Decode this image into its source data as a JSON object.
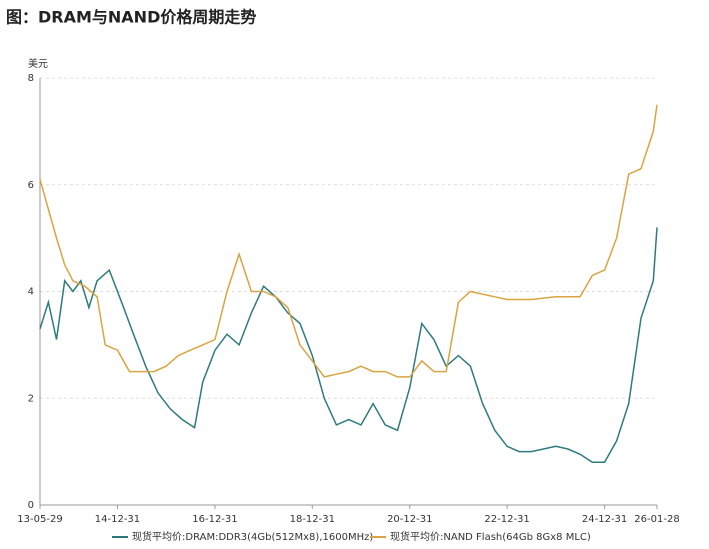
{
  "chart_data": {
    "type": "line",
    "title": "图：DRAM与NAND价格周期走势",
    "y_label": "美元",
    "xlim": [
      "2013-05-29",
      "2026-01-28"
    ],
    "xticks": [
      {
        "value": "2013-05-29",
        "label": "13-05-29"
      },
      {
        "value": "2014-12-31",
        "label": "14-12-31"
      },
      {
        "value": "2016-12-31",
        "label": "16-12-31"
      },
      {
        "value": "2018-12-31",
        "label": "18-12-31"
      },
      {
        "value": "2020-12-31",
        "label": "20-12-31"
      },
      {
        "value": "2022-12-31",
        "label": "22-12-31"
      },
      {
        "value": "2024-12-31",
        "label": "24-12-31"
      },
      {
        "value": "2026-01-28",
        "label": "26-01-28"
      }
    ],
    "ylim": [
      0,
      8
    ],
    "yticks": [
      0,
      2,
      4,
      6,
      8
    ],
    "grid": true,
    "legend": "bottom",
    "series": [
      {
        "name": "现货平均价:DRAM:DDR3(4Gb(512Mx8),1600MHz)",
        "color": "#2e7b7d",
        "x": [
          "2013-05-29",
          "2013-07-31",
          "2013-09-30",
          "2013-11-30",
          "2014-01-31",
          "2014-03-31",
          "2014-05-31",
          "2014-07-31",
          "2014-10-31",
          "2015-01-31",
          "2015-04-30",
          "2015-07-31",
          "2015-10-31",
          "2016-01-31",
          "2016-04-30",
          "2016-07-31",
          "2016-09-30",
          "2016-12-31",
          "2017-03-31",
          "2017-06-30",
          "2017-09-30",
          "2017-12-31",
          "2018-03-31",
          "2018-06-30",
          "2018-09-30",
          "2018-12-31",
          "2019-03-31",
          "2019-06-30",
          "2019-09-30",
          "2019-12-31",
          "2020-03-31",
          "2020-06-30",
          "2020-09-30",
          "2020-12-31",
          "2021-03-31",
          "2021-06-30",
          "2021-09-30",
          "2021-12-31",
          "2022-03-31",
          "2022-06-30",
          "2022-09-30",
          "2022-12-31",
          "2023-03-31",
          "2023-06-30",
          "2023-09-30",
          "2023-12-31",
          "2024-03-31",
          "2024-06-30",
          "2024-09-30",
          "2024-12-31",
          "2025-03-31",
          "2025-06-30",
          "2025-09-30",
          "2025-12-31",
          "2026-01-28"
        ],
        "values": [
          3.3,
          3.8,
          3.1,
          4.2,
          4.0,
          4.2,
          3.7,
          4.2,
          4.4,
          3.8,
          3.2,
          2.6,
          2.1,
          1.8,
          1.6,
          1.45,
          2.3,
          2.9,
          3.2,
          3.0,
          3.6,
          4.1,
          3.9,
          3.6,
          3.4,
          2.8,
          2.0,
          1.5,
          1.6,
          1.5,
          1.9,
          1.5,
          1.4,
          2.2,
          3.4,
          3.1,
          2.6,
          2.8,
          2.6,
          1.9,
          1.4,
          1.1,
          1.0,
          1.0,
          1.05,
          1.1,
          1.05,
          0.95,
          0.8,
          0.8,
          1.2,
          1.9,
          3.5,
          4.2,
          5.2
        ]
      },
      {
        "name": "现货平均价:NAND Flash(64Gb 8Gx8 MLC)",
        "color": "#d9a441",
        "x": [
          "2013-05-29",
          "2013-09-30",
          "2013-11-30",
          "2014-01-31",
          "2014-04-30",
          "2014-07-31",
          "2014-09-30",
          "2014-12-31",
          "2015-03-31",
          "2015-06-30",
          "2015-09-30",
          "2015-12-31",
          "2016-03-31",
          "2016-06-30",
          "2016-09-30",
          "2016-12-31",
          "2017-03-31",
          "2017-06-30",
          "2017-09-30",
          "2017-12-31",
          "2018-03-31",
          "2018-06-30",
          "2018-09-30",
          "2018-12-31",
          "2019-03-31",
          "2019-06-30",
          "2019-09-30",
          "2019-12-31",
          "2020-03-31",
          "2020-06-30",
          "2020-09-30",
          "2020-12-31",
          "2021-03-31",
          "2021-06-30",
          "2021-09-30",
          "2021-12-31",
          "2022-03-31",
          "2022-06-30",
          "2022-09-30",
          "2022-12-31",
          "2023-06-30",
          "2023-12-31",
          "2024-06-30",
          "2024-09-30",
          "2024-12-31",
          "2025-03-31",
          "2025-06-30",
          "2025-09-30",
          "2025-12-31",
          "2026-01-28"
        ],
        "values": [
          6.1,
          5.0,
          4.5,
          4.2,
          4.1,
          3.9,
          3.0,
          2.9,
          2.5,
          2.5,
          2.5,
          2.6,
          2.8,
          2.9,
          3.0,
          3.1,
          4.0,
          4.7,
          4.0,
          4.0,
          3.9,
          3.7,
          3.0,
          2.7,
          2.4,
          2.45,
          2.5,
          2.6,
          2.5,
          2.5,
          2.4,
          2.4,
          2.7,
          2.5,
          2.5,
          3.8,
          4.0,
          3.95,
          3.9,
          3.85,
          3.85,
          3.9,
          3.9,
          4.3,
          4.4,
          5.0,
          6.2,
          6.3,
          7.0,
          7.5
        ]
      }
    ]
  }
}
